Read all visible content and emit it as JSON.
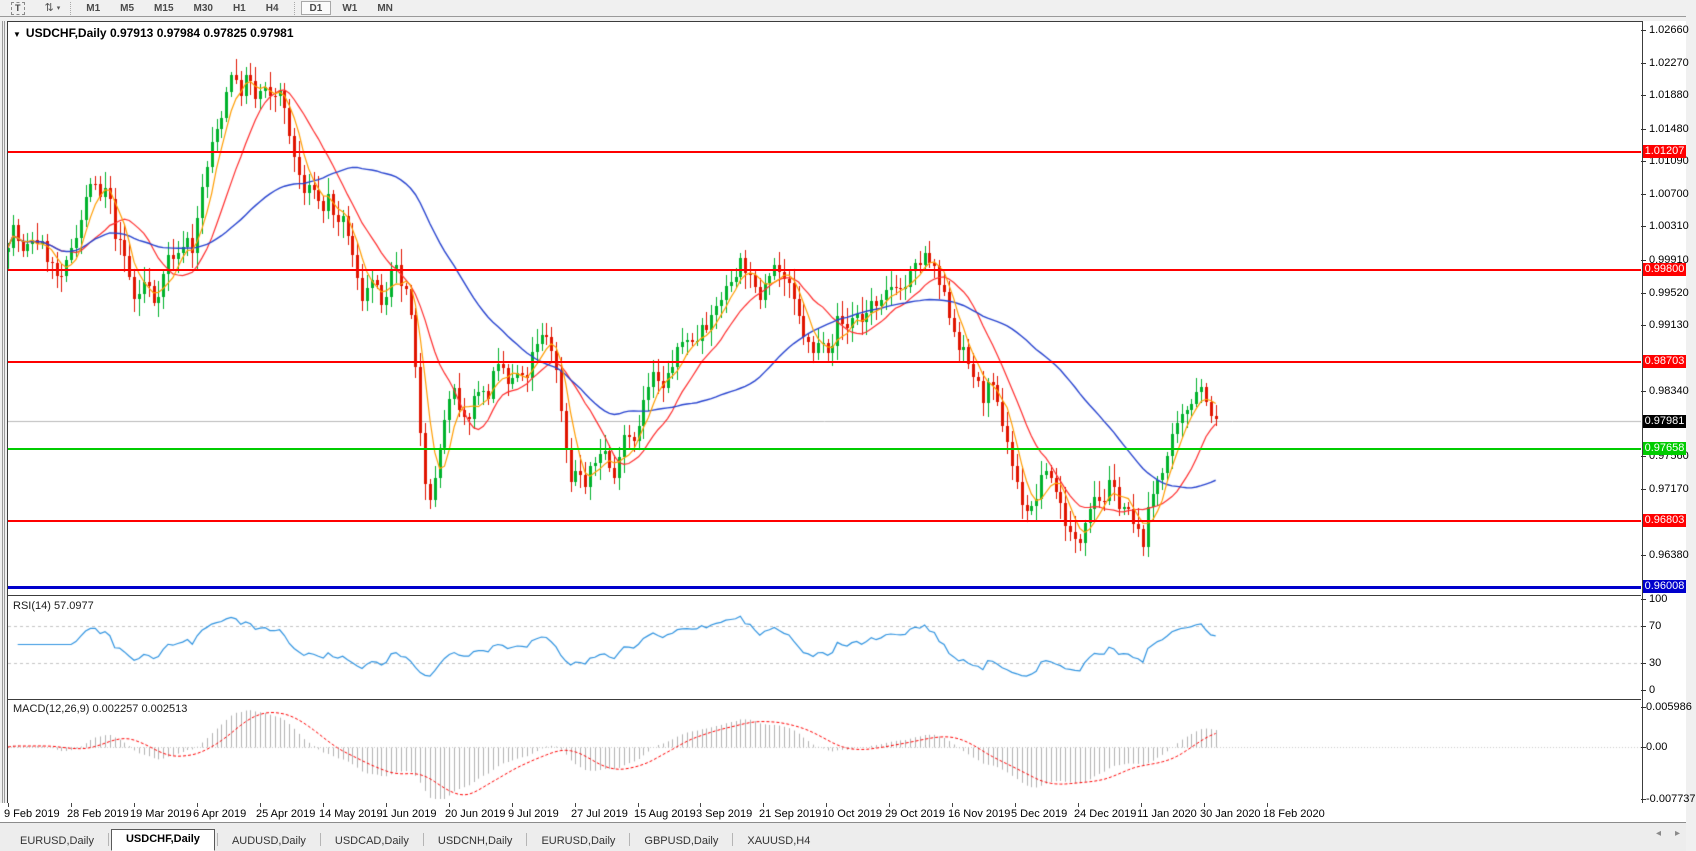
{
  "toolbar": {
    "text_tool_label": "T",
    "arrows_icon_glyph": "⇅",
    "dropdown_caret": "▾",
    "timeframes": [
      "M1",
      "M5",
      "M15",
      "M30",
      "H1",
      "H4",
      "D1",
      "W1",
      "MN"
    ],
    "active_timeframe": "D1"
  },
  "chart": {
    "title": {
      "collapse_glyph": "▼",
      "symbol": "USDCHF,Daily",
      "open": "0.97913",
      "high": "0.97984",
      "low": "0.97825",
      "close": "0.97981"
    }
  },
  "chart_data": {
    "type": "candlestick",
    "symbol": "USDCHF",
    "timeframe": "Daily",
    "ohlc_current": {
      "open": 0.97913,
      "high": 0.97984,
      "low": 0.97825,
      "close": 0.97981
    },
    "current_price": {
      "value": 0.97981,
      "label": "0.97981",
      "label_bg": "#000000"
    },
    "price_axis": {
      "ticks": [
        "1.02660",
        "1.02270",
        "1.01880",
        "1.01480",
        "1.01090",
        "1.00700",
        "1.00310",
        "0.99910",
        "0.99520",
        "0.99130",
        "0.98340",
        "0.97560",
        "0.97170",
        "0.96380"
      ]
    },
    "horizontal_lines": [
      {
        "price": 1.01207,
        "label": "1.01207",
        "color": "#ff0000",
        "kind": "resistance",
        "thickness": 2
      },
      {
        "price": 0.998,
        "label": "0.99800",
        "color": "#ff0000",
        "kind": "resistance",
        "thickness": 2
      },
      {
        "price": 0.98703,
        "label": "0.98703",
        "color": "#ff0000",
        "kind": "resistance",
        "thickness": 2
      },
      {
        "price": 0.97658,
        "label": "0.97658",
        "color": "#00cc00",
        "kind": "support",
        "thickness": 2
      },
      {
        "price": 0.96803,
        "label": "0.96803",
        "color": "#ff0000",
        "kind": "support",
        "thickness": 2
      },
      {
        "price": 0.96008,
        "label": "0.96008",
        "color": "#0000cc",
        "kind": "support",
        "thickness": 3
      }
    ],
    "date_labels": [
      "9 Feb 2019",
      "28 Feb 2019",
      "19 Mar 2019",
      "6 Apr 2019",
      "25 Apr 2019",
      "14 May 2019",
      "1 Jun 2019",
      "20 Jun 2019",
      "9 Jul 2019",
      "27 Jul 2019",
      "15 Aug 2019",
      "3 Sep 2019",
      "21 Sep 2019",
      "10 Oct 2019",
      "29 Oct 2019",
      "16 Nov 2019",
      "5 Dec 2019",
      "24 Dec 2019",
      "11 Jan 2020",
      "30 Jan 2020",
      "18 Feb 2020"
    ],
    "price_path_anchors": [
      [
        8,
        1.0
      ],
      [
        18,
        1.003
      ],
      [
        28,
        0.9995
      ],
      [
        38,
        1.002
      ],
      [
        48,
        1.0005
      ],
      [
        58,
        0.9978
      ],
      [
        66,
        0.9962
      ],
      [
        76,
        1.0008
      ],
      [
        86,
        1.0042
      ],
      [
        96,
        1.0088
      ],
      [
        104,
        1.0062
      ],
      [
        112,
        1.0078
      ],
      [
        120,
        1.002
      ],
      [
        130,
        0.9992
      ],
      [
        140,
        0.9938
      ],
      [
        150,
        0.9968
      ],
      [
        158,
        0.9942
      ],
      [
        166,
        0.9962
      ],
      [
        174,
        1.0
      ],
      [
        182,
        0.9992
      ],
      [
        190,
        1.0022
      ],
      [
        198,
        1.0002
      ],
      [
        206,
        1.0072
      ],
      [
        216,
        1.0125
      ],
      [
        226,
        1.0165
      ],
      [
        236,
        1.0218
      ],
      [
        244,
        1.0188
      ],
      [
        252,
        1.0212
      ],
      [
        260,
        1.0182
      ],
      [
        268,
        1.0198
      ],
      [
        276,
        1.0178
      ],
      [
        284,
        1.02
      ],
      [
        292,
        1.015
      ],
      [
        300,
        1.0108
      ],
      [
        310,
        1.0066
      ],
      [
        318,
        1.0082
      ],
      [
        326,
        1.0048
      ],
      [
        334,
        1.0068
      ],
      [
        342,
        1.0028
      ],
      [
        350,
        1.0038
      ],
      [
        358,
        0.9988
      ],
      [
        366,
        0.9942
      ],
      [
        374,
        0.9972
      ],
      [
        382,
        0.9952
      ],
      [
        390,
        0.9932
      ],
      [
        398,
        0.9986
      ],
      [
        406,
        0.9962
      ],
      [
        414,
        0.994
      ],
      [
        421,
        0.9845
      ],
      [
        429,
        0.9735
      ],
      [
        437,
        0.9702
      ],
      [
        444,
        0.9762
      ],
      [
        451,
        0.9812
      ],
      [
        459,
        0.9832
      ],
      [
        467,
        0.9792
      ],
      [
        475,
        0.9812
      ],
      [
        483,
        0.9842
      ],
      [
        491,
        0.9822
      ],
      [
        499,
        0.9856
      ],
      [
        507,
        0.9862
      ],
      [
        514,
        0.9836
      ],
      [
        521,
        0.9856
      ],
      [
        529,
        0.9842
      ],
      [
        537,
        0.9876
      ],
      [
        545,
        0.9896
      ],
      [
        553,
        0.9902
      ],
      [
        559,
        0.9872
      ],
      [
        565,
        0.9822
      ],
      [
        571,
        0.9762
      ],
      [
        577,
        0.9722
      ],
      [
        583,
        0.9746
      ],
      [
        589,
        0.9716
      ],
      [
        595,
        0.9736
      ],
      [
        601,
        0.9752
      ],
      [
        607,
        0.9772
      ],
      [
        613,
        0.9746
      ],
      [
        619,
        0.9726
      ],
      [
        625,
        0.9772
      ],
      [
        631,
        0.9792
      ],
      [
        637,
        0.9772
      ],
      [
        644,
        0.9802
      ],
      [
        651,
        0.9832
      ],
      [
        659,
        0.9856
      ],
      [
        667,
        0.9832
      ],
      [
        675,
        0.9862
      ],
      [
        683,
        0.9882
      ],
      [
        691,
        0.9902
      ],
      [
        699,
        0.9886
      ],
      [
        707,
        0.9922
      ],
      [
        715,
        0.9912
      ],
      [
        723,
        0.9942
      ],
      [
        731,
        0.9956
      ],
      [
        739,
        0.9976
      ],
      [
        747,
        0.9992
      ],
      [
        755,
        0.9966
      ],
      [
        763,
        0.9942
      ],
      [
        771,
        0.9976
      ],
      [
        779,
        0.9986
      ],
      [
        787,
        0.9972
      ],
      [
        795,
        0.9952
      ],
      [
        803,
        0.9922
      ],
      [
        811,
        0.9892
      ],
      [
        819,
        0.9876
      ],
      [
        827,
        0.9902
      ],
      [
        835,
        0.9882
      ],
      [
        843,
        0.9922
      ],
      [
        851,
        0.9906
      ],
      [
        859,
        0.9932
      ],
      [
        867,
        0.9916
      ],
      [
        875,
        0.9942
      ],
      [
        883,
        0.9926
      ],
      [
        891,
        0.9952
      ],
      [
        899,
        0.9966
      ],
      [
        907,
        0.9952
      ],
      [
        915,
        0.9972
      ],
      [
        923,
        0.9986
      ],
      [
        931,
        0.9996
      ],
      [
        939,
        0.9976
      ],
      [
        947,
        0.9952
      ],
      [
        955,
        0.9922
      ],
      [
        963,
        0.9892
      ],
      [
        971,
        0.9872
      ],
      [
        979,
        0.9852
      ],
      [
        987,
        0.9826
      ],
      [
        995,
        0.9842
      ],
      [
        1003,
        0.9812
      ],
      [
        1011,
        0.9782
      ],
      [
        1019,
        0.9732
      ],
      [
        1027,
        0.9702
      ],
      [
        1035,
        0.9686
      ],
      [
        1043,
        0.9716
      ],
      [
        1051,
        0.9742
      ],
      [
        1059,
        0.9722
      ],
      [
        1067,
        0.9692
      ],
      [
        1075,
        0.9662
      ],
      [
        1083,
        0.9646
      ],
      [
        1091,
        0.9692
      ],
      [
        1099,
        0.9712
      ],
      [
        1107,
        0.9702
      ],
      [
        1115,
        0.9722
      ],
      [
        1123,
        0.9702
      ],
      [
        1131,
        0.9692
      ],
      [
        1139,
        0.9672
      ],
      [
        1147,
        0.9652
      ],
      [
        1155,
        0.9702
      ],
      [
        1163,
        0.9732
      ],
      [
        1171,
        0.9752
      ],
      [
        1179,
        0.9782
      ],
      [
        1187,
        0.9802
      ],
      [
        1195,
        0.9822
      ],
      [
        1203,
        0.9842
      ],
      [
        1210,
        0.9832
      ],
      [
        1216,
        0.9798
      ]
    ],
    "moving_averages": [
      {
        "name": "fast",
        "period": 5,
        "color": "#ff9d00"
      },
      {
        "name": "mid",
        "period": 13,
        "color": "#ff2d2d"
      },
      {
        "name": "slow",
        "period": 40,
        "color": "#2743cf"
      }
    ],
    "colors": {
      "bull": "#00b22c",
      "bear": "#e01400"
    },
    "indicators": {
      "rsi": {
        "label": "RSI(14)",
        "value": "57.0977",
        "period": 14,
        "scale_ticks": [
          100,
          70,
          30,
          0
        ],
        "dashed_levels": [
          70,
          30
        ],
        "line_color": "#2f93e0"
      },
      "macd": {
        "label": "MACD(12,26,9)",
        "values": [
          "0.002257",
          "0.002513"
        ],
        "fast": 12,
        "slow": 26,
        "signal": 9,
        "scale_ticks": [
          {
            "text": "0.005986",
            "value": 0.005986
          },
          {
            "text": "0.00",
            "value": 0.0
          },
          {
            "text": "-0.007737",
            "value": -0.007737
          }
        ],
        "histogram_color": "#b2b2b2",
        "signal_color": "#ff0000"
      }
    }
  },
  "tabs": {
    "items": [
      "EURUSD,Daily",
      "USDCHF,Daily",
      "AUDUSD,Daily",
      "USDCAD,Daily",
      "USDCNH,Daily",
      "EURUSD,Daily",
      "GBPUSD,Daily",
      "XAUUSD,H4"
    ],
    "active_index": 1,
    "scroll_left_glyph": "◂",
    "scroll_right_glyph": "▸"
  }
}
